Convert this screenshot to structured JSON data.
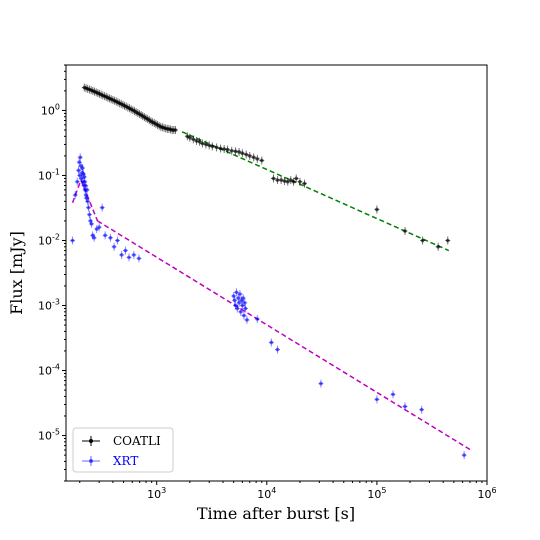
{
  "chart_data": {
    "type": "scatter",
    "xlabel": "Time after burst [s]",
    "ylabel": "Flux [mJy]",
    "xscale": "log",
    "yscale": "log",
    "xlim": [
      150,
      1000000
    ],
    "ylim": [
      2e-06,
      5
    ],
    "x_ticks": [
      {
        "value": 1000,
        "base": "10",
        "exp": "3"
      },
      {
        "value": 10000,
        "base": "10",
        "exp": "4"
      },
      {
        "value": 100000,
        "base": "10",
        "exp": "5"
      },
      {
        "value": 1000000,
        "base": "10",
        "exp": "6"
      }
    ],
    "y_ticks": [
      {
        "value": 1,
        "base": "10",
        "exp": "0"
      },
      {
        "value": 0.1,
        "base": "10",
        "exp": "-1"
      },
      {
        "value": 0.01,
        "base": "10",
        "exp": "-2"
      },
      {
        "value": 0.001,
        "base": "10",
        "exp": "-3"
      },
      {
        "value": 0.0001,
        "base": "10",
        "exp": "-4"
      },
      {
        "value": 1e-05,
        "base": "10",
        "exp": "-5"
      }
    ],
    "grid": false,
    "legend_position": "bottom-left",
    "series": [
      {
        "name": "COATLI",
        "color": "#000000",
        "marker": "dot",
        "points": [
          [
            220,
            2.25
          ],
          [
            228,
            2.2
          ],
          [
            236,
            2.15
          ],
          [
            245,
            2.1
          ],
          [
            254,
            2.05
          ],
          [
            263,
            2.0
          ],
          [
            272,
            1.95
          ],
          [
            282,
            1.9
          ],
          [
            292,
            1.85
          ],
          [
            302,
            1.8
          ],
          [
            313,
            1.75
          ],
          [
            324,
            1.7
          ],
          [
            336,
            1.66
          ],
          [
            348,
            1.62
          ],
          [
            360,
            1.57
          ],
          [
            373,
            1.53
          ],
          [
            386,
            1.49
          ],
          [
            400,
            1.45
          ],
          [
            414,
            1.41
          ],
          [
            429,
            1.37
          ],
          [
            444,
            1.33
          ],
          [
            460,
            1.29
          ],
          [
            476,
            1.26
          ],
          [
            493,
            1.22
          ],
          [
            510,
            1.18
          ],
          [
            528,
            1.15
          ],
          [
            547,
            1.11
          ],
          [
            566,
            1.08
          ],
          [
            586,
            1.04
          ],
          [
            607,
            1.01
          ],
          [
            628,
            0.98
          ],
          [
            650,
            0.94
          ],
          [
            673,
            0.91
          ],
          [
            697,
            0.88
          ],
          [
            722,
            0.85
          ],
          [
            747,
            0.82
          ],
          [
            773,
            0.79
          ],
          [
            800,
            0.76
          ],
          [
            828,
            0.74
          ],
          [
            857,
            0.71
          ],
          [
            887,
            0.68
          ],
          [
            918,
            0.66
          ],
          [
            950,
            0.64
          ],
          [
            983,
            0.62
          ],
          [
            1017,
            0.6
          ],
          [
            1052,
            0.58
          ],
          [
            1089,
            0.56
          ],
          [
            1127,
            0.55
          ],
          [
            1166,
            0.54
          ],
          [
            1206,
            0.53
          ],
          [
            1248,
            0.52
          ],
          [
            1291,
            0.52
          ],
          [
            1336,
            0.51
          ],
          [
            1382,
            0.5
          ],
          [
            1430,
            0.5
          ],
          [
            1480,
            0.5
          ],
          [
            1900,
            0.4
          ],
          [
            2000,
            0.38
          ],
          [
            2150,
            0.36
          ],
          [
            2300,
            0.34
          ],
          [
            2450,
            0.33
          ],
          [
            2600,
            0.31
          ],
          [
            2800,
            0.3
          ],
          [
            3000,
            0.29
          ],
          [
            3200,
            0.28
          ],
          [
            3500,
            0.27
          ],
          [
            3800,
            0.26
          ],
          [
            4100,
            0.255
          ],
          [
            4400,
            0.25
          ],
          [
            4800,
            0.24
          ],
          [
            5200,
            0.235
          ],
          [
            5600,
            0.23
          ],
          [
            6000,
            0.22
          ],
          [
            6500,
            0.21
          ],
          [
            7000,
            0.2
          ],
          [
            7600,
            0.19
          ],
          [
            8200,
            0.18
          ],
          [
            9000,
            0.17
          ],
          [
            11500,
            0.09
          ],
          [
            12500,
            0.085
          ],
          [
            13500,
            0.085
          ],
          [
            14500,
            0.082
          ],
          [
            15500,
            0.08
          ],
          [
            16500,
            0.085
          ],
          [
            17500,
            0.08
          ],
          [
            18500,
            0.09
          ],
          [
            20000,
            0.08
          ],
          [
            22000,
            0.075
          ],
          [
            100000,
            0.03
          ],
          [
            180000,
            0.014
          ],
          [
            260000,
            0.01
          ],
          [
            360000,
            0.008
          ],
          [
            440000,
            0.01
          ]
        ]
      },
      {
        "name": "XRT",
        "color": "#0000ff",
        "marker": "dot",
        "points": [
          [
            172,
            0.01
          ],
          [
            182,
            0.05
          ],
          [
            190,
            0.08
          ],
          [
            195,
            0.12
          ],
          [
            198,
            0.16
          ],
          [
            200,
            0.1
          ],
          [
            202,
            0.19
          ],
          [
            205,
            0.14
          ],
          [
            207,
            0.09
          ],
          [
            210,
            0.11
          ],
          [
            212,
            0.13
          ],
          [
            214,
            0.08
          ],
          [
            216,
            0.105
          ],
          [
            218,
            0.07
          ],
          [
            220,
            0.095
          ],
          [
            222,
            0.08
          ],
          [
            224,
            0.06
          ],
          [
            226,
            0.07
          ],
          [
            228,
            0.05
          ],
          [
            230,
            0.045
          ],
          [
            233,
            0.06
          ],
          [
            236,
            0.04
          ],
          [
            240,
            0.032
          ],
          [
            245,
            0.025
          ],
          [
            250,
            0.02
          ],
          [
            256,
            0.018
          ],
          [
            262,
            0.012
          ],
          [
            270,
            0.011
          ],
          [
            285,
            0.015
          ],
          [
            300,
            0.016
          ],
          [
            320,
            0.032
          ],
          [
            340,
            0.012
          ],
          [
            380,
            0.011
          ],
          [
            410,
            0.008
          ],
          [
            440,
            0.01
          ],
          [
            480,
            0.006
          ],
          [
            520,
            0.007
          ],
          [
            560,
            0.0055
          ],
          [
            620,
            0.006
          ],
          [
            690,
            0.0053
          ],
          [
            5000,
            0.0014
          ],
          [
            5100,
            0.0012
          ],
          [
            5200,
            0.001
          ],
          [
            5300,
            0.0016
          ],
          [
            5400,
            0.0009
          ],
          [
            5500,
            0.0013
          ],
          [
            5600,
            0.0011
          ],
          [
            5700,
            0.0015
          ],
          [
            5800,
            0.0008
          ],
          [
            5900,
            0.0012
          ],
          [
            6000,
            0.001
          ],
          [
            6100,
            0.0013
          ],
          [
            6200,
            0.0007
          ],
          [
            6300,
            0.0011
          ],
          [
            6400,
            0.0009
          ],
          [
            6600,
            0.0006
          ],
          [
            8200,
            0.00062
          ],
          [
            11000,
            0.00027
          ],
          [
            12500,
            0.00021
          ],
          [
            31000,
            6.3e-05
          ],
          [
            100000,
            3.6e-05
          ],
          [
            140000,
            4.3e-05
          ],
          [
            180000,
            2.8e-05
          ],
          [
            255000,
            2.5e-05
          ],
          [
            620000,
            5e-06
          ]
        ]
      }
    ],
    "fit_lines": [
      {
        "color": "#008000",
        "dash": "dashed",
        "from": [
          1700,
          0.47
        ],
        "to": [
          450000,
          0.007
        ]
      },
      {
        "color": "#bf00bf",
        "dash": "dashed",
        "from": [
          172,
          0.038
        ],
        "to": [
          205,
          0.085
        ]
      },
      {
        "color": "#bf00bf",
        "dash": "dashed",
        "from": [
          205,
          0.085
        ],
        "to": [
          290,
          0.02
        ]
      },
      {
        "color": "#bf00bf",
        "dash": "dashed",
        "from": [
          290,
          0.02
        ],
        "to": [
          700000,
          6.1e-06
        ]
      }
    ]
  }
}
